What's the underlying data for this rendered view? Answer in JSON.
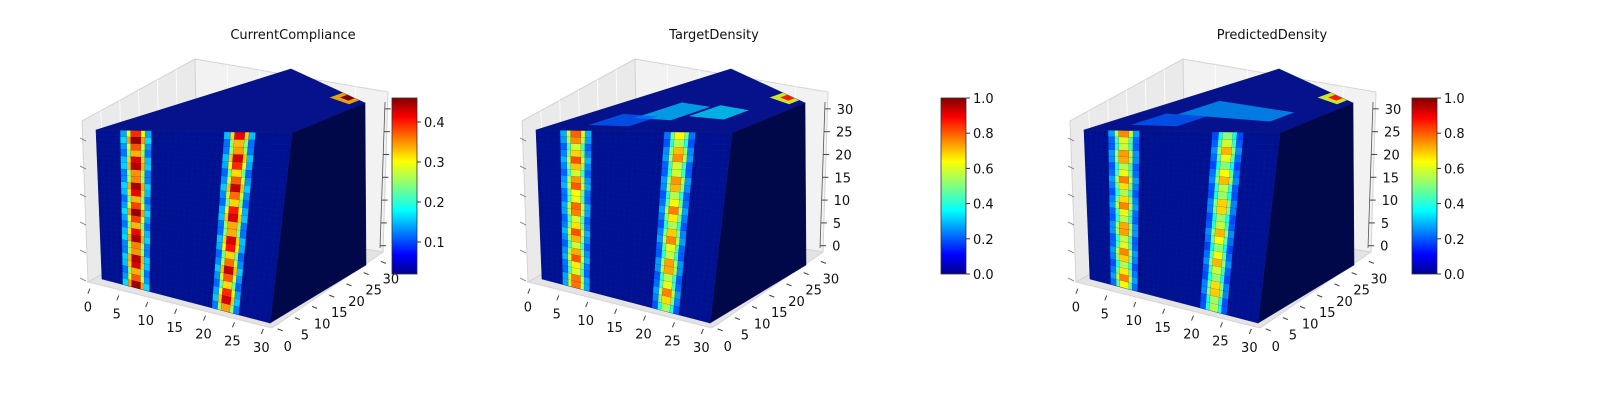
{
  "chart_data": [
    {
      "type": "voxel3d",
      "title": "CurrentCompliance",
      "grid_size": [
        32,
        32,
        32
      ],
      "axes": {
        "x": {
          "ticks": [
            "0",
            "5",
            "10",
            "15",
            "20",
            "25",
            "30"
          ]
        },
        "y": {
          "ticks": [
            "0",
            "5",
            "10",
            "15",
            "20",
            "25",
            "30"
          ]
        },
        "z": {
          "ticks": []
        }
      },
      "colorbar": {
        "range": [
          0.02,
          0.46
        ],
        "ticks": [
          "0.1",
          "0.2",
          "0.3",
          "0.4"
        ],
        "tick_values": [
          0.1,
          0.2,
          0.3,
          0.4
        ],
        "colormap": "jet"
      },
      "columns": [
        {
          "x_range": [
            5,
            8
          ],
          "peak_value": 0.45
        },
        {
          "x_range": [
            22,
            25
          ],
          "peak_value": 0.43
        }
      ],
      "hot_spot": {
        "location": "top-back edge",
        "peak_value": 0.46
      }
    },
    {
      "type": "voxel3d",
      "title": "TargetDensity",
      "grid_size": [
        32,
        32,
        32
      ],
      "axes": {
        "x": {
          "ticks": [
            "0",
            "5",
            "10",
            "15",
            "20",
            "25",
            "30"
          ]
        },
        "y": {
          "ticks": [
            "0",
            "5",
            "10",
            "15",
            "20",
            "25",
            "30"
          ]
        },
        "z": {
          "ticks": [
            "0",
            "5",
            "10",
            "15",
            "20",
            "25",
            "30"
          ]
        }
      },
      "colorbar": {
        "range": [
          0.0,
          1.0
        ],
        "ticks": [
          "0.0",
          "0.2",
          "0.4",
          "0.6",
          "0.8",
          "1.0"
        ],
        "tick_values": [
          0.0,
          0.2,
          0.4,
          0.6,
          0.8,
          1.0
        ],
        "colormap": "jet"
      },
      "columns": [
        {
          "x_range": [
            5,
            8
          ],
          "peak_value": 0.8
        },
        {
          "x_range": [
            22,
            25
          ],
          "peak_value": 0.75
        }
      ],
      "hot_spot": {
        "location": "top-back edge",
        "peak_value": 0.85
      }
    },
    {
      "type": "voxel3d",
      "title": "PredictedDensity",
      "grid_size": [
        32,
        32,
        32
      ],
      "axes": {
        "x": {
          "ticks": [
            "0",
            "5",
            "10",
            "15",
            "20",
            "25",
            "30"
          ]
        },
        "y": {
          "ticks": [
            "0",
            "5",
            "10",
            "15",
            "20",
            "25",
            "30"
          ]
        },
        "z": {
          "ticks": [
            "0",
            "5",
            "10",
            "15",
            "20",
            "25",
            "30"
          ]
        }
      },
      "colorbar": {
        "range": [
          0.0,
          1.0
        ],
        "ticks": [
          "0.0",
          "0.2",
          "0.4",
          "0.6",
          "0.8",
          "1.0"
        ],
        "tick_values": [
          0.0,
          0.2,
          0.4,
          0.6,
          0.8,
          1.0
        ],
        "colormap": "jet"
      },
      "columns": [
        {
          "x_range": [
            5,
            8
          ],
          "peak_value": 0.75
        },
        {
          "x_range": [
            22,
            25
          ],
          "peak_value": 0.7
        }
      ],
      "hot_spot": {
        "location": "top-back edge",
        "peak_value": 0.85
      }
    }
  ]
}
